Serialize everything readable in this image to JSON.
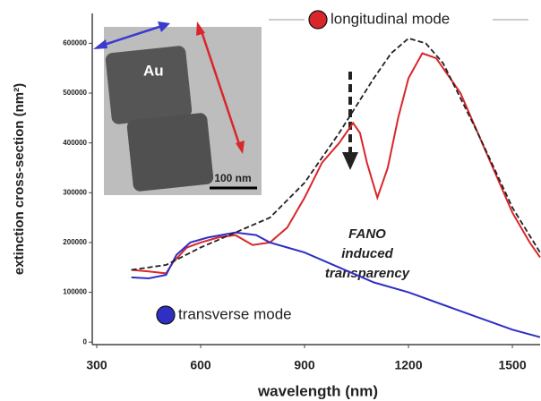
{
  "chart_data": {
    "type": "line",
    "x_label": "wavelength (nm)",
    "y_label": "extinction cross-section (nm²)",
    "xlim": [
      287,
      1580
    ],
    "ylim": [
      -5000,
      660000
    ],
    "xticks": [
      300,
      600,
      900,
      1200,
      1500
    ],
    "yticks": [
      0,
      100000,
      200000,
      300000,
      400000,
      500000,
      600000
    ],
    "series": [
      {
        "name": "longitudinal mode",
        "color": "#d9262b",
        "style": "solid",
        "x": [
          400,
          450,
          500,
          520,
          560,
          600,
          650,
          700,
          750,
          800,
          850,
          900,
          950,
          1000,
          1040,
          1060,
          1080,
          1110,
          1140,
          1170,
          1200,
          1240,
          1280,
          1350,
          1400,
          1450,
          1500,
          1550,
          1580
        ],
        "values": [
          145000,
          142000,
          138000,
          160000,
          190000,
          200000,
          210000,
          215000,
          195000,
          200000,
          230000,
          290000,
          360000,
          400000,
          440000,
          420000,
          360000,
          290000,
          350000,
          450000,
          530000,
          580000,
          570000,
          500000,
          420000,
          340000,
          260000,
          200000,
          170000
        ]
      },
      {
        "name": "transverse mode",
        "color": "#2f2fc4",
        "style": "solid",
        "x": [
          400,
          450,
          500,
          530,
          570,
          620,
          700,
          760,
          800,
          850,
          900,
          1000,
          1100,
          1200,
          1300,
          1400,
          1500,
          1580
        ],
        "values": [
          130000,
          128000,
          135000,
          175000,
          200000,
          210000,
          220000,
          215000,
          200000,
          190000,
          180000,
          150000,
          120000,
          100000,
          75000,
          50000,
          25000,
          10000
        ]
      },
      {
        "color": "#222222",
        "style": "dashed",
        "x": [
          400,
          500,
          600,
          700,
          800,
          900,
          1000,
          1100,
          1150,
          1200,
          1250,
          1300,
          1400,
          1500,
          1580
        ],
        "values": [
          145000,
          155000,
          190000,
          220000,
          250000,
          320000,
          420000,
          530000,
          580000,
          610000,
          600000,
          560000,
          420000,
          270000,
          180000
        ]
      }
    ],
    "annotations": [
      "FANO",
      "induced",
      "transparency",
      "Au",
      "100 nm"
    ]
  }
}
